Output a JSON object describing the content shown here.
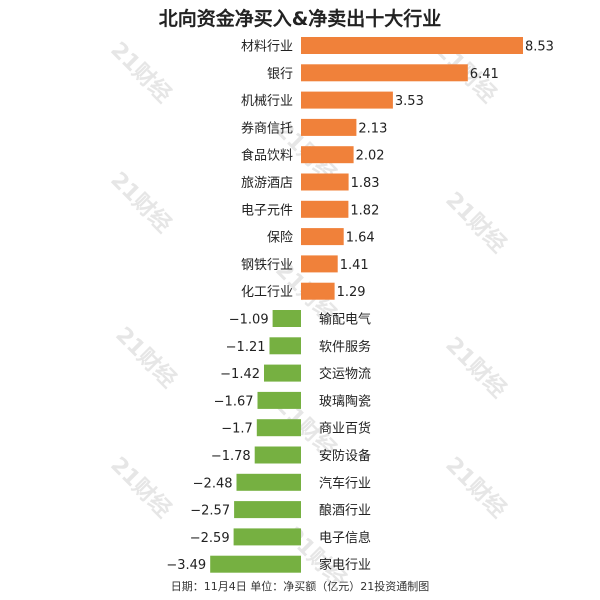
{
  "chart_data": {
    "type": "bar",
    "orientation": "horizontal",
    "title": "北向资金净买入&净卖出十大行业",
    "categories": [
      "材料行业",
      "银行",
      "机械行业",
      "券商信托",
      "食品饮料",
      "旅游酒店",
      "电子元件",
      "保险",
      "钢铁行业",
      "化工行业",
      "输配电气",
      "软件服务",
      "交运物流",
      "玻璃陶瓷",
      "商业百货",
      "安防设备",
      "汽车行业",
      "酿酒行业",
      "电子信息",
      "家电行业"
    ],
    "values": [
      8.53,
      6.41,
      3.53,
      2.13,
      2.02,
      1.83,
      1.82,
      1.64,
      1.41,
      1.29,
      -1.09,
      -1.21,
      -1.42,
      -1.67,
      -1.7,
      -1.78,
      -2.48,
      -2.57,
      -2.59,
      -3.49
    ],
    "value_labels": [
      "8.53",
      "6.41",
      "3.53",
      "2.13",
      "2.02",
      "1.83",
      "1.82",
      "1.64",
      "1.41",
      "1.29",
      "−1.09",
      "−1.21",
      "−1.42",
      "−1.67",
      "−1.7",
      "−1.78",
      "−2.48",
      "−2.57",
      "−2.59",
      "−3.49"
    ],
    "xlim": [
      -3.49,
      8.53
    ],
    "colors": {
      "positive": "#f0813a",
      "negative": "#76b041",
      "label_text": "#222222"
    },
    "grid": false,
    "legend": "none"
  },
  "footer": "日期：11月4日  单位：净买额（亿元）21投资通制图",
  "watermark": "21财经"
}
